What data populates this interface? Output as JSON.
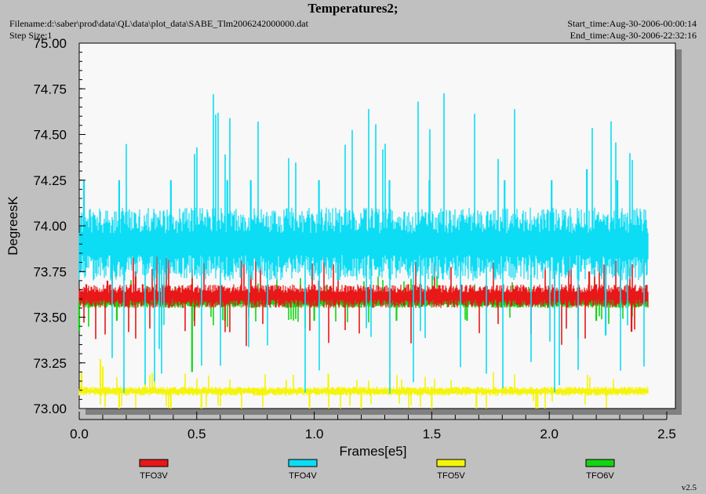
{
  "header": {
    "title": "Temperatures2;",
    "filename": "Filename:d:\\saber\\prod\\data\\QL\\data\\plot_data\\SABE_Tlm2006242000000.dat",
    "step_size": "Step Size:1",
    "start_time": "Start_time:Aug-30-2006-00:00:14",
    "end_time": "End_time:Aug-30-2006-22:32:16"
  },
  "version": "v2.5",
  "colors": {
    "page_background": "#c0c0c0",
    "plot_background": "#f8f8f8",
    "shadow": "#808080",
    "TFO3V": "#e81818",
    "TFO4V": "#0cdcf4",
    "TFO5V": "#f4f40c",
    "TFO6V": "#14d414"
  },
  "chart_data": {
    "type": "line",
    "title": "Temperatures2;",
    "xlabel": "Frames[e5]",
    "ylabel": "DegreesK",
    "xlim": [
      0.0,
      2.5
    ],
    "ylim": [
      73.0,
      75.0
    ],
    "x_ticks": [
      "0.0",
      "0.5",
      "1.0",
      "1.5",
      "2.0",
      "2.5"
    ],
    "y_ticks": [
      "73.00",
      "73.25",
      "73.50",
      "73.75",
      "74.00",
      "74.25",
      "74.50",
      "74.75",
      "75.00"
    ],
    "grid": false,
    "legend_position": "bottom",
    "x_data_end": 2.42,
    "series": [
      {
        "name": "TFO3V",
        "color": "#e81818",
        "typical_range": [
          73.55,
          73.68
        ],
        "x": [
          0.03,
          0.12,
          0.22,
          0.24,
          0.27,
          0.48,
          0.73,
          1.02,
          1.4,
          1.45,
          2.09,
          2.17,
          2.2,
          2.35
        ],
        "y": [
          73.68,
          73.7,
          73.68,
          73.75,
          73.68,
          73.68,
          73.75,
          73.7,
          73.68,
          73.68,
          73.68,
          73.75,
          73.68,
          73.42
        ]
      },
      {
        "name": "TFO4V",
        "color": "#0cdcf4",
        "typical_range": [
          73.7,
          74.1
        ],
        "x": [
          0.02,
          0.17,
          0.39,
          0.63,
          0.73,
          1.02,
          1.32,
          1.49,
          1.81,
          2.01,
          2.16,
          2.24,
          2.29
        ],
        "y": [
          74.25,
          74.25,
          74.25,
          74.25,
          74.25,
          74.25,
          74.25,
          74.25,
          74.25,
          74.25,
          74.31,
          73.4,
          74.25
        ]
      },
      {
        "name": "TFO5V",
        "color": "#f4f40c",
        "typical_range": [
          73.07,
          73.12
        ],
        "x": [
          0.01,
          0.09,
          0.1,
          0.17,
          0.39,
          0.52,
          0.98,
          1.06,
          1.2,
          1.5,
          1.69,
          1.95
        ],
        "y": [
          73.2,
          73.27,
          73.23,
          73.0,
          73.0,
          73.0,
          73.0,
          73.19,
          73.0,
          73.0,
          73.0,
          73.0
        ]
      },
      {
        "name": "TFO6V",
        "color": "#14d414",
        "typical_range": [
          73.55,
          73.62
        ],
        "x": [
          0.0,
          0.16,
          0.48,
          0.49,
          0.62,
          1.0,
          1.35,
          1.65,
          2.2,
          2.35
        ],
        "y": [
          73.42,
          73.48,
          73.2,
          73.48,
          73.48,
          73.48,
          73.48,
          73.48,
          73.48,
          73.48
        ]
      }
    ]
  }
}
